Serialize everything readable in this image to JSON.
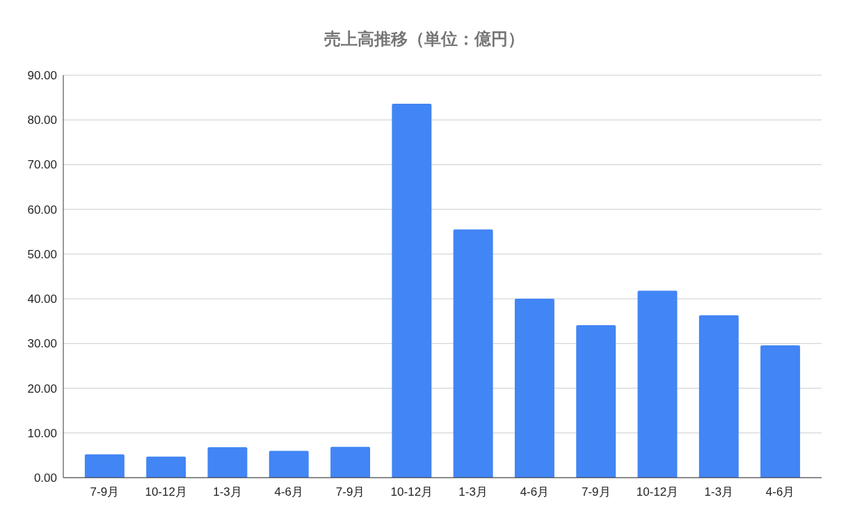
{
  "chart_data": {
    "type": "bar",
    "title": "売上高推移（単位：億円）",
    "categories": [
      "7-9月",
      "10-12月",
      "1-3月",
      "4-6月",
      "7-9月",
      "10-12月",
      "1-3月",
      "4-6月",
      "7-9月",
      "10-12月",
      "1-3月",
      "4-6月"
    ],
    "values": [
      5.2,
      4.7,
      6.8,
      6.0,
      6.9,
      83.6,
      55.5,
      40.0,
      34.1,
      41.8,
      36.3,
      29.6
    ],
    "color": "#4285f4",
    "ylim": [
      0,
      90
    ],
    "yticks": [
      {
        "value": 0,
        "label": "0.00"
      },
      {
        "value": 10,
        "label": "10.00"
      },
      {
        "value": 20,
        "label": "20.00"
      },
      {
        "value": 30,
        "label": "30.00"
      },
      {
        "value": 40,
        "label": "40.00"
      },
      {
        "value": 50,
        "label": "50.00"
      },
      {
        "value": 60,
        "label": "60.00"
      },
      {
        "value": 70,
        "label": "70.00"
      },
      {
        "value": 80,
        "label": "80.00"
      },
      {
        "value": 90,
        "label": "90.00"
      }
    ],
    "grid": "y"
  }
}
